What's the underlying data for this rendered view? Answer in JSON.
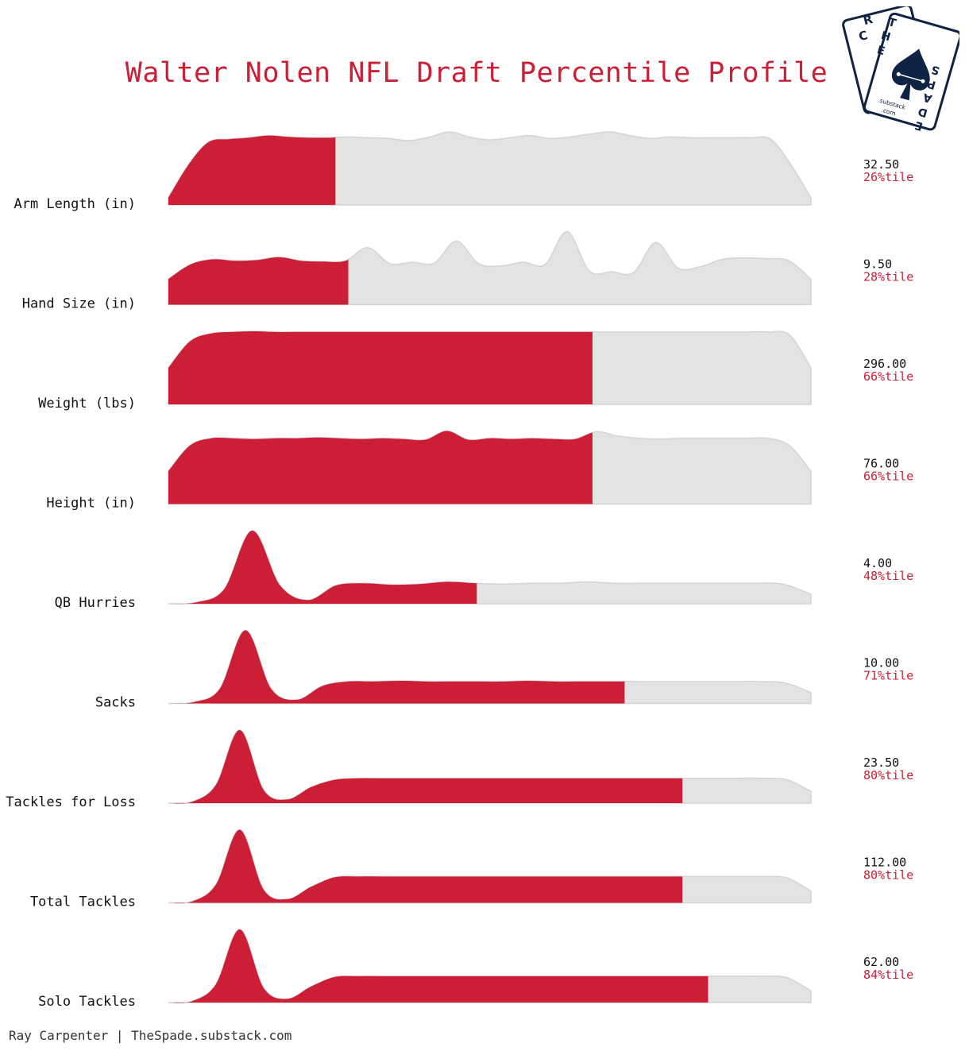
{
  "title": "Walter Nolen NFL Draft Percentile Profile",
  "credit": "Ray Carpenter | TheSpade.substack.com",
  "logo": {
    "letters_back": [
      "R",
      "C"
    ],
    "letters_front_left": [
      "T",
      "H",
      "E"
    ],
    "letters_front_right": [
      "S",
      "P",
      "A",
      "D",
      "E"
    ],
    "url_line1": ".substack",
    "url_line2": ".com"
  },
  "colors": {
    "accent": "#cc1f36",
    "distribution_fill": "#e3e3e3",
    "distribution_stroke": "#d4d4d4",
    "logo_navy": "#0f2344"
  },
  "chart_data": {
    "type": "ridgeline",
    "title": "Walter Nolen NFL Draft Percentile Profile",
    "description_of_encoding": "Each row is a density of the draft-class distribution; the red region is filled up to the player's percentile.",
    "rows": [
      {
        "label": "Arm Length (in)",
        "value": "32.50",
        "percentile_label": "26%tile",
        "percentile": 26,
        "density": [
          0.1,
          0.55,
          0.86,
          0.9,
          0.92,
          0.95,
          0.93,
          0.92,
          0.92,
          0.93,
          0.92,
          0.91,
          0.88,
          0.93,
          1.0,
          0.93,
          0.89,
          0.92,
          0.95,
          0.91,
          0.93,
          0.97,
          1.0,
          0.95,
          0.91,
          0.93,
          0.92,
          0.92,
          0.92,
          0.92,
          0.9,
          0.55,
          0.1
        ]
      },
      {
        "label": "Hand Size (in)",
        "value": "9.50",
        "percentile_label": "28%tile",
        "percentile": 28,
        "density": [
          0.35,
          0.55,
          0.62,
          0.6,
          0.61,
          0.65,
          0.6,
          0.59,
          0.6,
          0.78,
          0.56,
          0.58,
          0.57,
          0.87,
          0.56,
          0.53,
          0.58,
          0.55,
          1.0,
          0.46,
          0.45,
          0.44,
          0.85,
          0.5,
          0.52,
          0.62,
          0.64,
          0.63,
          0.6,
          0.35
        ]
      },
      {
        "label": "Weight (lbs)",
        "value": "296.00",
        "percentile_label": "66%tile",
        "percentile": 66,
        "density": [
          0.5,
          0.86,
          0.97,
          0.99,
          1.0,
          0.99,
          0.99,
          0.99,
          0.99,
          0.99,
          0.99,
          0.99,
          0.99,
          0.99,
          0.99,
          0.99,
          0.99,
          0.99,
          0.99,
          0.99,
          0.99,
          0.99,
          0.99,
          0.99,
          0.99,
          0.99,
          0.99,
          0.99,
          0.99,
          0.95,
          0.5
        ]
      },
      {
        "label": "Height (in)",
        "value": "76.00",
        "percentile_label": "66%tile",
        "percentile": 66,
        "density": [
          0.45,
          0.8,
          0.9,
          0.9,
          0.89,
          0.9,
          0.9,
          0.91,
          0.9,
          0.89,
          0.9,
          0.89,
          0.88,
          1.0,
          0.88,
          0.9,
          0.89,
          0.9,
          0.89,
          0.89,
          0.99,
          0.93,
          0.9,
          0.89,
          0.9,
          0.9,
          0.9,
          0.9,
          0.9,
          0.8,
          0.45
        ]
      },
      {
        "label": "QB Hurries",
        "value": "4.00",
        "percentile_label": "48%tile",
        "percentile": 48,
        "density": [
          0.0,
          0.02,
          0.2,
          1.0,
          0.25,
          0.05,
          0.25,
          0.28,
          0.26,
          0.27,
          0.3,
          0.28,
          0.27,
          0.28,
          0.28,
          0.3,
          0.28,
          0.28,
          0.28,
          0.28,
          0.28,
          0.28,
          0.27,
          0.13
        ]
      },
      {
        "label": "Sacks",
        "value": "10.00",
        "percentile_label": "71%tile",
        "percentile": 71,
        "density": [
          0.0,
          0.02,
          0.2,
          1.0,
          0.2,
          0.05,
          0.24,
          0.3,
          0.3,
          0.31,
          0.3,
          0.3,
          0.3,
          0.3,
          0.31,
          0.3,
          0.3,
          0.3,
          0.3,
          0.3,
          0.3,
          0.3,
          0.3,
          0.3,
          0.28,
          0.15
        ]
      },
      {
        "label": "Tackles for Loss",
        "value": "23.50",
        "percentile_label": "80%tile",
        "percentile": 80,
        "density": [
          0.0,
          0.02,
          0.25,
          1.0,
          0.18,
          0.05,
          0.22,
          0.32,
          0.34,
          0.34,
          0.34,
          0.34,
          0.34,
          0.34,
          0.34,
          0.34,
          0.34,
          0.34,
          0.34,
          0.34,
          0.34,
          0.34,
          0.34,
          0.34,
          0.34,
          0.34,
          0.32,
          0.16
        ]
      },
      {
        "label": "Total Tackles",
        "value": "112.00",
        "percentile_label": "80%tile",
        "percentile": 80,
        "density": [
          0.0,
          0.02,
          0.25,
          1.0,
          0.18,
          0.05,
          0.22,
          0.35,
          0.36,
          0.36,
          0.36,
          0.36,
          0.36,
          0.36,
          0.36,
          0.36,
          0.36,
          0.36,
          0.36,
          0.36,
          0.36,
          0.36,
          0.36,
          0.36,
          0.36,
          0.36,
          0.34,
          0.16
        ]
      },
      {
        "label": "Solo Tackles",
        "value": "62.00",
        "percentile_label": "84%tile",
        "percentile": 84,
        "density": [
          0.0,
          0.02,
          0.25,
          1.0,
          0.2,
          0.05,
          0.22,
          0.35,
          0.36,
          0.36,
          0.36,
          0.36,
          0.36,
          0.36,
          0.36,
          0.36,
          0.36,
          0.36,
          0.36,
          0.36,
          0.36,
          0.36,
          0.36,
          0.36,
          0.36,
          0.36,
          0.34,
          0.16
        ]
      }
    ]
  }
}
